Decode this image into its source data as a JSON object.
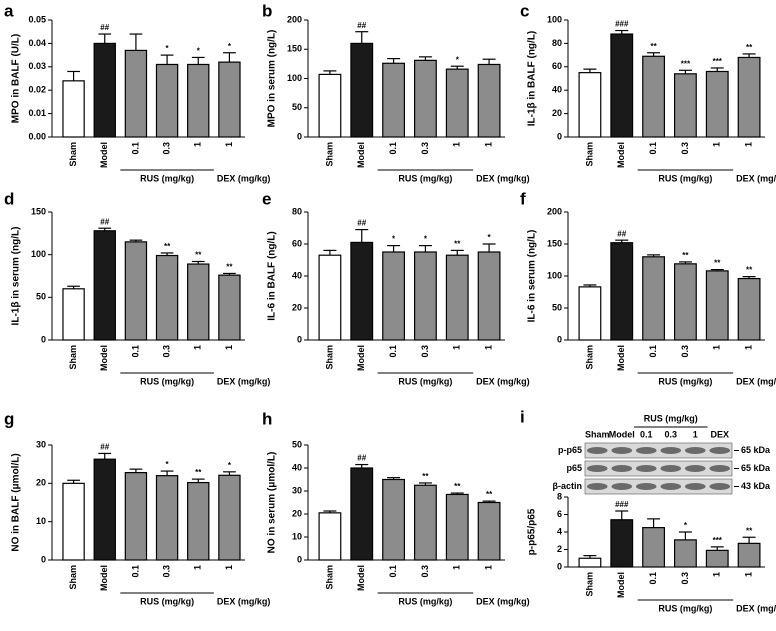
{
  "chart_data": [
    {
      "type": "bar",
      "panel": "a",
      "ylabel": "MPO in BALF (U/L)",
      "categories": [
        "Sham",
        "Model",
        "0.1",
        "0.3",
        "1",
        "1"
      ],
      "groups": [
        "RUS (mg/kg)",
        "DEX (mg/kg)"
      ],
      "values": [
        0.024,
        0.04,
        0.037,
        0.031,
        0.031,
        0.032
      ],
      "errors": [
        0.004,
        0.004,
        0.007,
        0.004,
        0.003,
        0.004
      ],
      "annotations": [
        null,
        "##",
        null,
        "*",
        "*",
        "*"
      ],
      "colors": [
        "#ffffff",
        "#1a1a1a",
        "#8c8c8c",
        "#8c8c8c",
        "#8c8c8c",
        "#8c8c8c"
      ],
      "ylim": [
        0,
        0.05
      ],
      "yticks": [
        {
          "value": 0,
          "label": "0.00"
        },
        {
          "value": 0.01,
          "label": "0.01"
        },
        {
          "value": 0.02,
          "label": "0.02"
        },
        {
          "value": 0.03,
          "label": "0.03"
        },
        {
          "value": 0.04,
          "label": "0.04"
        },
        {
          "value": 0.05,
          "label": "0.05"
        }
      ]
    },
    {
      "type": "bar",
      "panel": "b",
      "ylabel": "MPO in serum (ng/L)",
      "categories": [
        "Sham",
        "Model",
        "0.1",
        "0.3",
        "1",
        "1"
      ],
      "groups": [
        "RUS (mg/kg)",
        "DEX (mg/kg)"
      ],
      "values": [
        107,
        160,
        126,
        131,
        116,
        124
      ],
      "errors": [
        6,
        20,
        8,
        6,
        5,
        9
      ],
      "annotations": [
        null,
        "##",
        null,
        null,
        "*",
        null
      ],
      "colors": [
        "#ffffff",
        "#1a1a1a",
        "#8c8c8c",
        "#8c8c8c",
        "#8c8c8c",
        "#8c8c8c"
      ],
      "ylim": [
        0,
        200
      ],
      "yticks": [
        0,
        50,
        100,
        150,
        200
      ]
    },
    {
      "type": "bar",
      "panel": "c",
      "ylabel": "IL-1β in BALF (ng/L)",
      "categories": [
        "Sham",
        "Model",
        "0.1",
        "0.3",
        "1",
        "1"
      ],
      "groups": [
        "RUS (mg/kg)",
        "DEX (mg/kg)"
      ],
      "values": [
        55,
        88,
        69,
        54,
        56,
        68
      ],
      "errors": [
        3,
        3,
        3,
        3,
        3,
        3
      ],
      "annotations": [
        null,
        "###",
        "**",
        "***",
        "***",
        "**"
      ],
      "colors": [
        "#ffffff",
        "#1a1a1a",
        "#8c8c8c",
        "#8c8c8c",
        "#8c8c8c",
        "#8c8c8c"
      ],
      "ylim": [
        0,
        100
      ],
      "yticks": [
        0,
        20,
        40,
        60,
        80,
        100
      ]
    },
    {
      "type": "bar",
      "panel": "d",
      "ylabel": "IL-1β in serum (ng/L)",
      "categories": [
        "Sham",
        "Model",
        "0.1",
        "0.3",
        "1",
        "1"
      ],
      "groups": [
        "RUS (mg/kg)",
        "DEX (mg/kg)"
      ],
      "values": [
        60,
        128,
        115,
        99,
        89,
        76
      ],
      "errors": [
        3,
        3,
        2,
        3,
        3,
        2
      ],
      "annotations": [
        null,
        "##",
        null,
        "**",
        "**",
        "**"
      ],
      "colors": [
        "#ffffff",
        "#1a1a1a",
        "#8c8c8c",
        "#8c8c8c",
        "#8c8c8c",
        "#8c8c8c"
      ],
      "ylim": [
        0,
        150
      ],
      "yticks": [
        0,
        50,
        100,
        150
      ]
    },
    {
      "type": "bar",
      "panel": "e",
      "ylabel": "IL-6 in BALF (ng/L)",
      "categories": [
        "Sham",
        "Model",
        "0.1",
        "0.3",
        "1",
        "1"
      ],
      "groups": [
        "RUS (mg/kg)",
        "DEX (mg/kg)"
      ],
      "values": [
        53,
        61,
        55,
        55,
        53,
        55
      ],
      "errors": [
        3,
        8,
        4,
        4,
        3,
        5
      ],
      "annotations": [
        null,
        "##",
        "*",
        "*",
        "**",
        "*"
      ],
      "colors": [
        "#ffffff",
        "#1a1a1a",
        "#8c8c8c",
        "#8c8c8c",
        "#8c8c8c",
        "#8c8c8c"
      ],
      "ylim": [
        0,
        80
      ],
      "yticks": [
        0,
        20,
        40,
        60,
        80
      ]
    },
    {
      "type": "bar",
      "panel": "f",
      "ylabel": "IL-6 in serum (ng/L)",
      "categories": [
        "Sham",
        "Model",
        "0.1",
        "0.3",
        "1",
        "1"
      ],
      "groups": [
        "RUS (mg/kg)",
        "DEX (mg/kg)"
      ],
      "values": [
        83,
        152,
        130,
        119,
        108,
        96
      ],
      "errors": [
        3,
        4,
        3,
        3,
        2,
        3
      ],
      "annotations": [
        null,
        "##",
        null,
        "**",
        "**",
        "**"
      ],
      "colors": [
        "#ffffff",
        "#1a1a1a",
        "#8c8c8c",
        "#8c8c8c",
        "#8c8c8c",
        "#8c8c8c"
      ],
      "ylim": [
        0,
        200
      ],
      "yticks": [
        0,
        50,
        100,
        150,
        200
      ]
    },
    {
      "type": "bar",
      "panel": "g",
      "ylabel": "NO in BALF (μmol/L)",
      "categories": [
        "Sham",
        "Model",
        "0.1",
        "0.3",
        "1",
        "1"
      ],
      "groups": [
        "RUS (mg/kg)",
        "DEX (mg/kg)"
      ],
      "values": [
        20,
        26.3,
        22.8,
        22,
        20.2,
        22.1
      ],
      "errors": [
        0.8,
        1.5,
        0.9,
        1.2,
        0.9,
        0.9
      ],
      "annotations": [
        null,
        "##",
        null,
        "*",
        "**",
        "*"
      ],
      "colors": [
        "#ffffff",
        "#1a1a1a",
        "#8c8c8c",
        "#8c8c8c",
        "#8c8c8c",
        "#8c8c8c"
      ],
      "ylim": [
        0,
        30
      ],
      "yticks": [
        0,
        10,
        20,
        30
      ]
    },
    {
      "type": "bar",
      "panel": "h",
      "ylabel": "NO in serum (μmol/L)",
      "categories": [
        "Sham",
        "Model",
        "0.1",
        "0.3",
        "1",
        "1"
      ],
      "groups": [
        "RUS (mg/kg)",
        "DEX (mg/kg)"
      ],
      "values": [
        20.5,
        40,
        35,
        32.5,
        28.5,
        25
      ],
      "errors": [
        0.8,
        1.5,
        0.8,
        1,
        0.6,
        0.6
      ],
      "annotations": [
        null,
        "##",
        null,
        "**",
        "**",
        "**"
      ],
      "colors": [
        "#ffffff",
        "#1a1a1a",
        "#8c8c8c",
        "#8c8c8c",
        "#8c8c8c",
        "#8c8c8c"
      ],
      "ylim": [
        0,
        50
      ],
      "yticks": [
        0,
        10,
        20,
        30,
        40,
        50
      ]
    },
    {
      "type": "bar",
      "panel": "i",
      "ylabel": "p-p65/p65",
      "categories": [
        "Sham",
        "Model",
        "0.1",
        "0.3",
        "1",
        "1"
      ],
      "groups": [
        "RUS (mg/kg)",
        "DEX (mg/kg)"
      ],
      "values": [
        1,
        5.4,
        4.5,
        3.1,
        1.9,
        2.7
      ],
      "errors": [
        0.3,
        1,
        1,
        0.9,
        0.4,
        0.7
      ],
      "annotations": [
        null,
        "###",
        null,
        "*",
        "***",
        "**"
      ],
      "colors": [
        "#ffffff",
        "#1a1a1a",
        "#8c8c8c",
        "#8c8c8c",
        "#8c8c8c",
        "#8c8c8c"
      ],
      "ylim": [
        0,
        8
      ],
      "yticks": [
        0,
        2,
        4,
        6,
        8
      ],
      "blot": {
        "group": "RUS (mg/kg)",
        "lanes": [
          "Sham",
          "Model",
          "0.1",
          "0.3",
          "1",
          "DEX"
        ],
        "rows": [
          {
            "name": "p-p65",
            "size": "65 kDa"
          },
          {
            "name": "p65",
            "size": "65 kDa"
          },
          {
            "name": "β-actin",
            "size": "43 kDa"
          }
        ]
      }
    }
  ]
}
